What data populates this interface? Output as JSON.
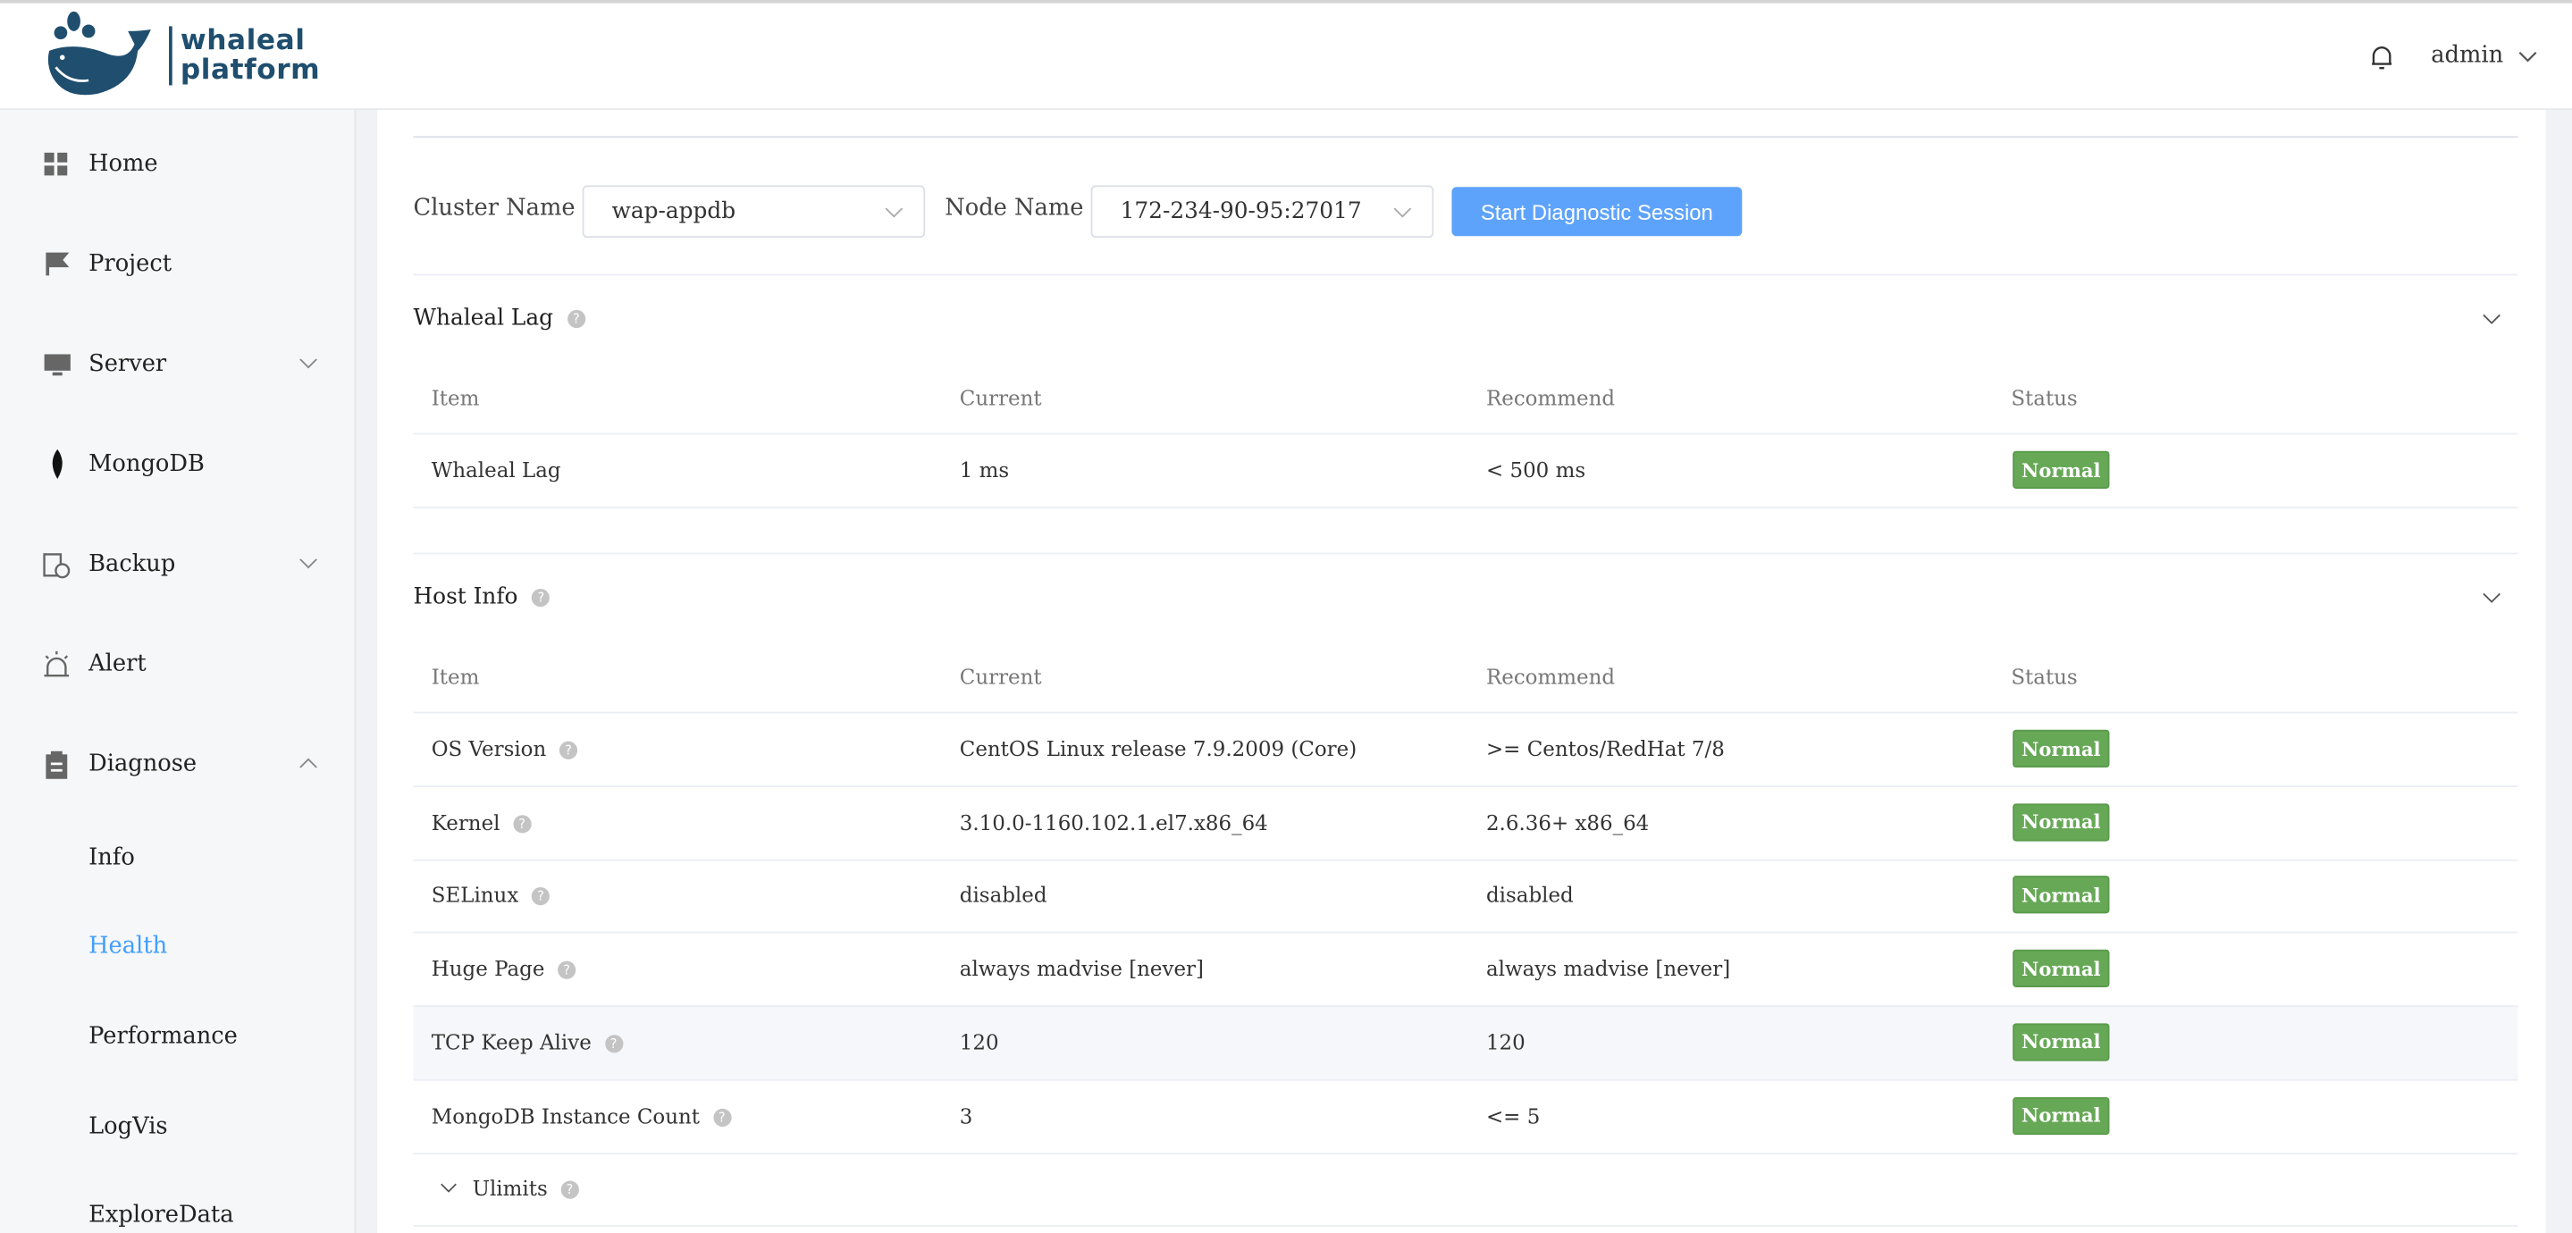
{
  "header": {
    "brand": "whaleal platform",
    "brand_line1": "whaleal",
    "brand_line2": "platform",
    "user": "admin"
  },
  "sidebar": {
    "items": [
      {
        "label": "Home",
        "icon": "grid-icon"
      },
      {
        "label": "Project",
        "icon": "flag-icon"
      },
      {
        "label": "Server",
        "icon": "monitor-icon"
      },
      {
        "label": "MongoDB",
        "icon": "leaf-icon"
      },
      {
        "label": "Backup",
        "icon": "backup-icon"
      },
      {
        "label": "Alert",
        "icon": "alarm-icon"
      },
      {
        "label": "Diagnose",
        "icon": "clipboard-icon"
      }
    ],
    "diagnose_sub": [
      "Info",
      "Health",
      "Performance",
      "LogVis",
      "ExploreData"
    ],
    "active": "Health"
  },
  "filters": {
    "cluster_label": "Cluster Name",
    "cluster_value": "wap-appdb",
    "node_label": "Node Name",
    "node_value": "172-234-90-95:27017",
    "start_button": "Start Diagnostic Session"
  },
  "columns": [
    "Item",
    "Current",
    "Recommend",
    "Status"
  ],
  "whaleal_lag": {
    "title": "Whaleal Lag",
    "rows": [
      {
        "item": "Whaleal Lag",
        "current": "1 ms",
        "recommend": "< 500 ms",
        "status": "Normal"
      }
    ]
  },
  "host_info": {
    "title": "Host Info",
    "rows": [
      {
        "item": "OS Version",
        "current": "CentOS Linux release 7.9.2009 (Core)",
        "recommend": ">= Centos/RedHat 7/8",
        "status": "Normal"
      },
      {
        "item": "Kernel",
        "current": "3.10.0-1160.102.1.el7.x86_64",
        "recommend": "2.6.36+ x86_64",
        "status": "Normal"
      },
      {
        "item": "SELinux",
        "current": "disabled",
        "recommend": "disabled",
        "status": "Normal"
      },
      {
        "item": "Huge Page",
        "current": "always madvise [never]",
        "recommend": "always madvise [never]",
        "status": "Normal"
      },
      {
        "item": "TCP Keep Alive",
        "current": "120",
        "recommend": "120",
        "status": "Normal"
      },
      {
        "item": "MongoDB Instance Count",
        "current": "3",
        "recommend": "<= 5",
        "status": "Normal"
      }
    ],
    "ulimits": "Ulimits"
  },
  "colors": {
    "brand": "#1f4e6e",
    "accent": "#409eff",
    "button": "#5ea3fb",
    "normal": "#67a857"
  }
}
